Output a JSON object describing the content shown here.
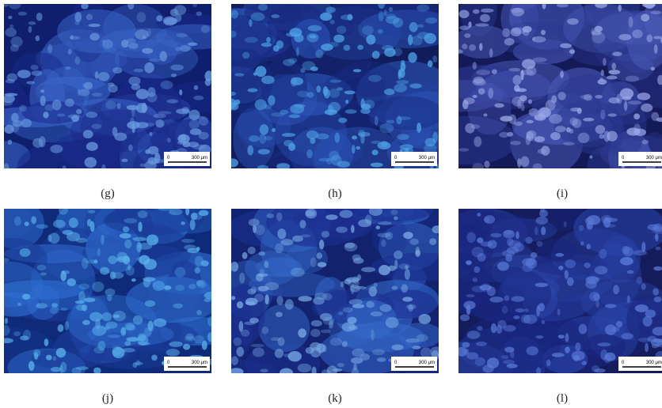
{
  "panels": [
    {
      "label": "(g)",
      "scale_start": "0",
      "scale_text": "300 μm"
    },
    {
      "label": "(h)",
      "scale_start": "0",
      "scale_text": "300 μm"
    },
    {
      "label": "(i)",
      "scale_start": "0",
      "scale_text": "300 μm"
    },
    {
      "label": "(j)",
      "scale_start": "0",
      "scale_text": "300 μm"
    },
    {
      "label": "(k)",
      "scale_start": "0",
      "scale_text": "300 μm"
    },
    {
      "label": "(l)",
      "scale_start": "0",
      "scale_text": "300 μm"
    }
  ]
}
